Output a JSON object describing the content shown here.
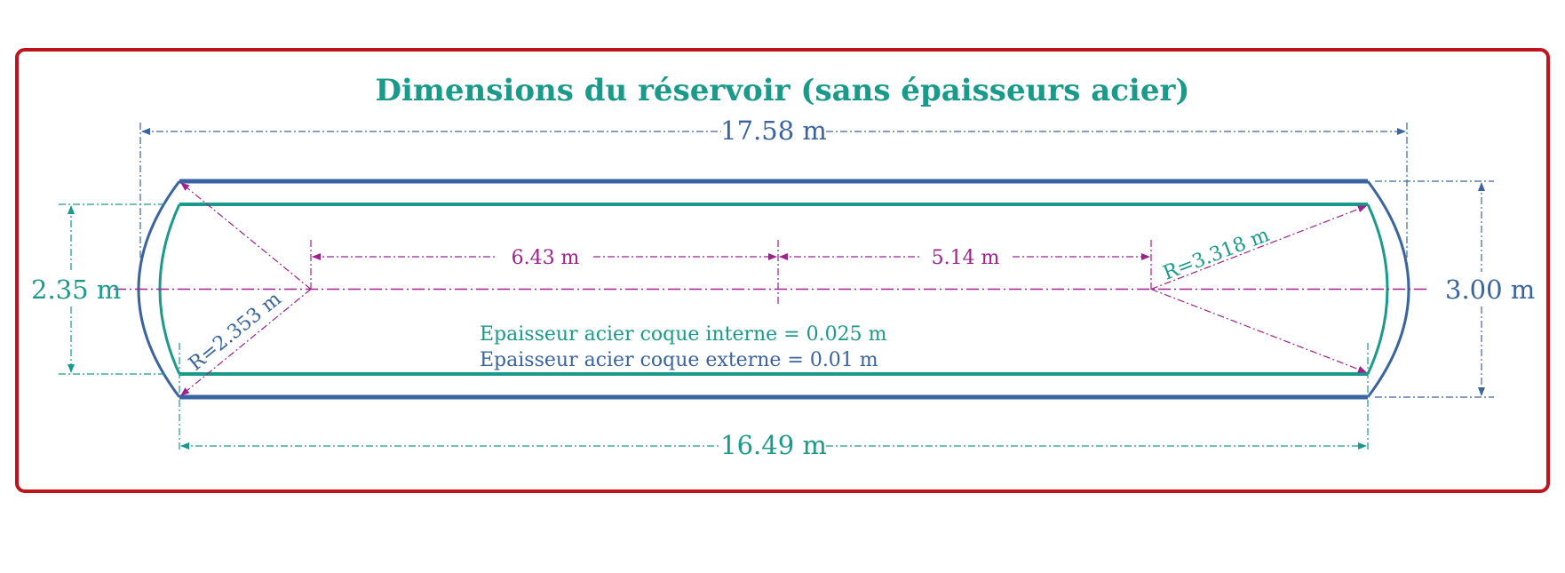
{
  "title": "Dimensions du réservoir (sans épaisseurs acier)",
  "dimensions": {
    "outer_length": "17.58 m",
    "inner_length": "16.49 m",
    "inner_height": "2.35 m",
    "outer_height": "3.00 m",
    "left_segment": "6.43 m",
    "right_segment": "5.14 m",
    "inner_radius": "R=2.353 m",
    "outer_radius": "R=3.318 m"
  },
  "notes": {
    "inner_shell": "Epaisseur acier coque interne = 0.025 m",
    "outer_shell": "Epaisseur acier coque externe = 0.01 m"
  },
  "colors": {
    "frame": "#c0141c",
    "outer": "#3a64a0",
    "inner": "#1a9a8a",
    "axis": "#a0208e"
  }
}
